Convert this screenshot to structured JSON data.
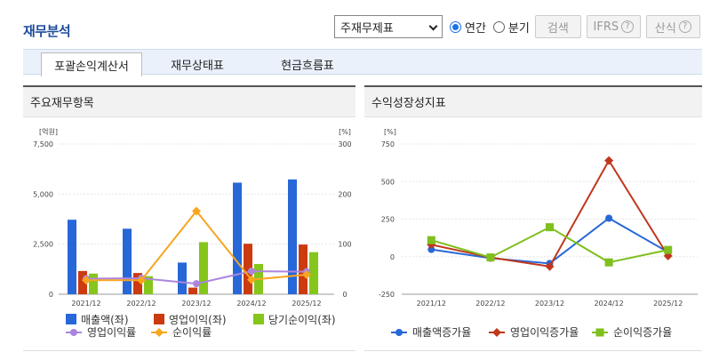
{
  "page": {
    "title": "재무분석"
  },
  "controls": {
    "statement_select": "주재무제표",
    "period_annual": "연간",
    "period_quarter": "분기",
    "search": "검색",
    "ifrs": "IFRS",
    "formula": "산식",
    "help": "?"
  },
  "tabs": [
    "포괄손익계산서",
    "재무상태표",
    "현금흐름표"
  ],
  "panels": {
    "left_title": "주요재무항목",
    "right_title": "수익성장성지표"
  },
  "colors": {
    "blue": "#2767d8",
    "red": "#cc3a10",
    "green": "#86c51b",
    "purple": "#ab85dd",
    "orange": "#f7a620",
    "blue_line": "#2767d8",
    "red_line": "#c0381c",
    "green_line": "#7fbf1e"
  },
  "chart_data": [
    {
      "type": "bar",
      "categories": [
        "2021/12",
        "2022/12",
        "2023/12",
        "2024/12",
        "2025/12"
      ],
      "y_left_unit": "[억원]",
      "y_right_unit": "[%]",
      "y_left_ticks": [
        "0",
        "2,500",
        "5,000",
        "7,500"
      ],
      "y_right_ticks": [
        "0",
        "100",
        "200",
        "300"
      ],
      "ylim_left": [
        0,
        7500
      ],
      "ylim_right": [
        0,
        300
      ],
      "series": [
        {
          "name": "매출액(좌)",
          "type": "bar",
          "axis": "left",
          "color": "#2767d8",
          "values": [
            3720,
            3270,
            1580,
            5570,
            5730
          ]
        },
        {
          "name": "영업이익(좌)",
          "type": "bar",
          "axis": "left",
          "color": "#cc3a10",
          "values": [
            1160,
            1060,
            330,
            2520,
            2480
          ]
        },
        {
          "name": "당기순이익(좌)",
          "type": "bar",
          "axis": "left",
          "color": "#86c51b",
          "values": [
            1030,
            900,
            2600,
            1510,
            2100
          ]
        },
        {
          "name": "영업이익률",
          "type": "line",
          "axis": "right",
          "color": "#ab85dd",
          "marker": "circle",
          "values": [
            31,
            32,
            21,
            46,
            45
          ]
        },
        {
          "name": "순이익률",
          "type": "line",
          "axis": "right",
          "color": "#f7a620",
          "marker": "diamond",
          "values": [
            28,
            28,
            166,
            29,
            39
          ]
        }
      ]
    },
    {
      "type": "line",
      "categories": [
        "2021/12",
        "2022/12",
        "2023/12",
        "2024/12",
        "2025/12"
      ],
      "y_unit": "[%]",
      "y_ticks": [
        "-250",
        "0",
        "250",
        "500",
        "750"
      ],
      "ylim": [
        -250,
        750
      ],
      "series": [
        {
          "name": "매출액증가율",
          "color": "#2767d8",
          "marker": "circle",
          "values": [
            48,
            -10,
            -45,
            256,
            30
          ]
        },
        {
          "name": "영업이익증가율",
          "color": "#c0381c",
          "marker": "diamond",
          "values": [
            80,
            -5,
            -65,
            640,
            5
          ]
        },
        {
          "name": "순이익증가율",
          "color": "#7fbf1e",
          "marker": "square",
          "values": [
            110,
            -5,
            196,
            -38,
            45
          ]
        }
      ]
    }
  ]
}
